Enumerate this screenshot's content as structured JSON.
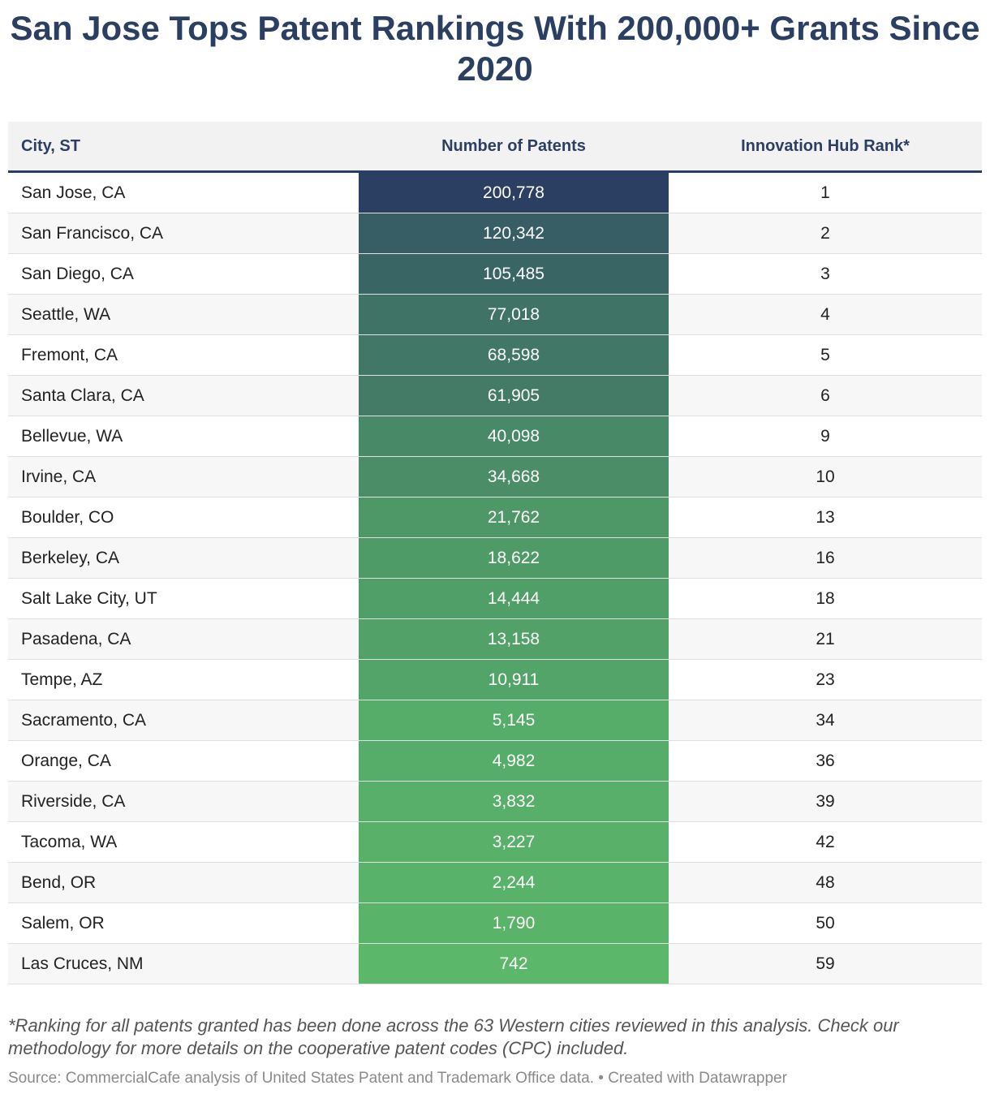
{
  "title": "San Jose Tops Patent Rankings With 200,000+ Grants Since 2020",
  "colors": {
    "title": "#2b3f63",
    "scale_high": "#2b3f63",
    "scale_low": "#5dbd6a"
  },
  "chart_data": {
    "type": "table",
    "columns": [
      "City, ST",
      "Number of Patents",
      "Innovation Hub Rank*"
    ],
    "rows": [
      {
        "city": "San Jose, CA",
        "patents": "200,778",
        "patents_value": 200778,
        "rank": "1"
      },
      {
        "city": "San Francisco, CA",
        "patents": "120,342",
        "patents_value": 120342,
        "rank": "2"
      },
      {
        "city": "San Diego, CA",
        "patents": "105,485",
        "patents_value": 105485,
        "rank": "3"
      },
      {
        "city": "Seattle, WA",
        "patents": "77,018",
        "patents_value": 77018,
        "rank": "4"
      },
      {
        "city": "Fremont, CA",
        "patents": "68,598",
        "patents_value": 68598,
        "rank": "5"
      },
      {
        "city": "Santa Clara, CA",
        "patents": "61,905",
        "patents_value": 61905,
        "rank": "6"
      },
      {
        "city": "Bellevue, WA",
        "patents": "40,098",
        "patents_value": 40098,
        "rank": "9"
      },
      {
        "city": "Irvine, CA",
        "patents": "34,668",
        "patents_value": 34668,
        "rank": "10"
      },
      {
        "city": "Boulder, CO",
        "patents": "21,762",
        "patents_value": 21762,
        "rank": "13"
      },
      {
        "city": "Berkeley, CA",
        "patents": "18,622",
        "patents_value": 18622,
        "rank": "16"
      },
      {
        "city": "Salt Lake City, UT",
        "patents": "14,444",
        "patents_value": 14444,
        "rank": "18"
      },
      {
        "city": "Pasadena, CA",
        "patents": "13,158",
        "patents_value": 13158,
        "rank": "21"
      },
      {
        "city": "Tempe, AZ",
        "patents": "10,911",
        "patents_value": 10911,
        "rank": "23"
      },
      {
        "city": "Sacramento, CA",
        "patents": "5,145",
        "patents_value": 5145,
        "rank": "34"
      },
      {
        "city": "Orange, CA",
        "patents": "4,982",
        "patents_value": 4982,
        "rank": "36"
      },
      {
        "city": "Riverside, CA",
        "patents": "3,832",
        "patents_value": 3832,
        "rank": "39"
      },
      {
        "city": "Tacoma, WA",
        "patents": "3,227",
        "patents_value": 3227,
        "rank": "42"
      },
      {
        "city": "Bend, OR",
        "patents": "2,244",
        "patents_value": 2244,
        "rank": "48"
      },
      {
        "city": "Salem, OR",
        "patents": "1,790",
        "patents_value": 1790,
        "rank": "50"
      },
      {
        "city": "Las Cruces, NM",
        "patents": "742",
        "patents_value": 742,
        "rank": "59"
      }
    ]
  },
  "footnote": "*Ranking for all patents granted has been done across the 63 Western cities reviewed in this analysis. Check our methodology for more details on the cooperative patent codes (CPC) included.",
  "source": "Source: CommercialCafe analysis of United States Patent and Trademark Office data. • Created with Datawrapper"
}
